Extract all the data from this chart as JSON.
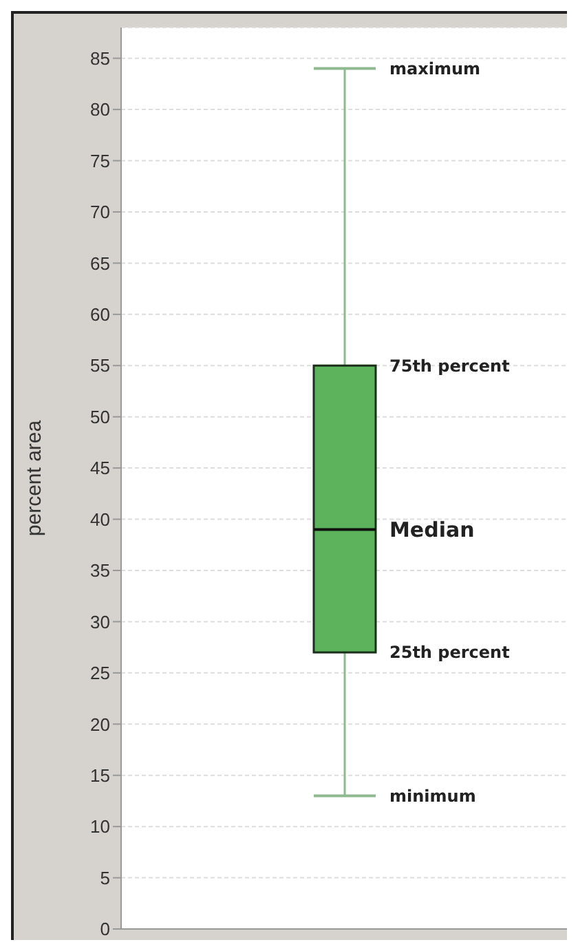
{
  "chart_data": {
    "type": "box",
    "ylabel": "percent area",
    "categories": [
      null
    ],
    "series": [
      {
        "color": "#5cb35c",
        "boxes": [
          {
            "low": 13,
            "q1": 27,
            "median": 39,
            "q3": 55,
            "high": 84
          }
        ]
      }
    ],
    "ylim": [
      0,
      88
    ],
    "yticks": [
      0,
      5,
      10,
      15,
      20,
      25,
      30,
      35,
      40,
      45,
      50,
      55,
      60,
      65,
      70,
      75,
      80,
      85
    ],
    "grid": "y",
    "annotations": [
      "maximum",
      "75th percent",
      "Median",
      "25th percent",
      "minimum"
    ]
  }
}
